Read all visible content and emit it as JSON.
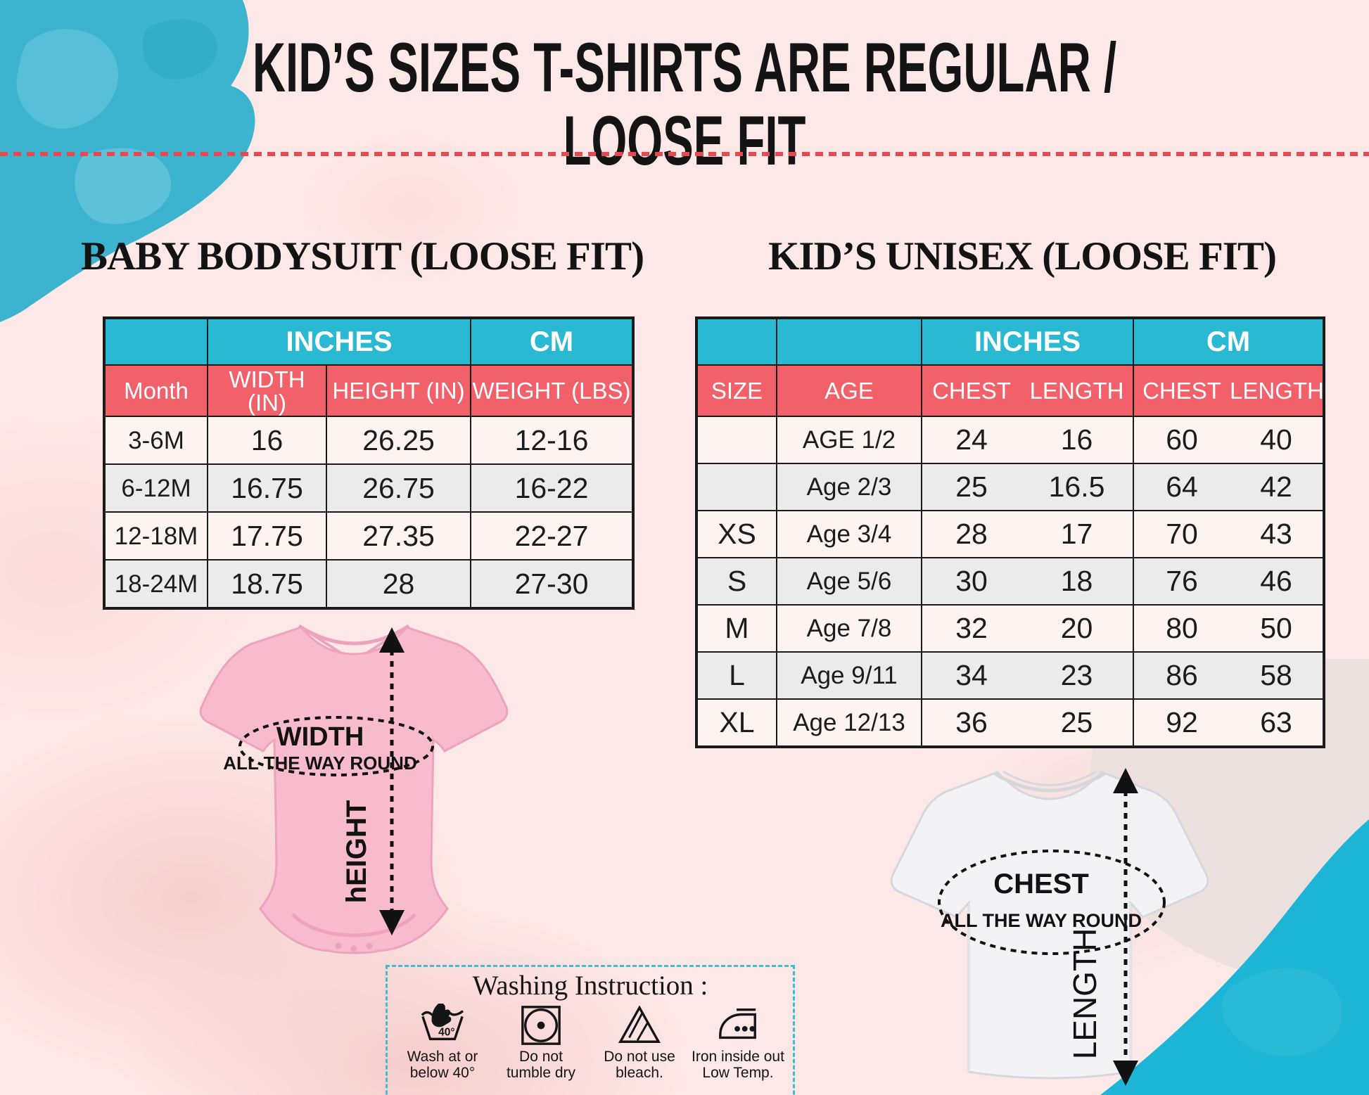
{
  "page": {
    "title": "KID’S SIZES T-SHIRTS ARE REGULAR / LOOSE FIT"
  },
  "colors": {
    "table_teal": "#29b9d2",
    "table_red": "#f2606a",
    "background_pink": "#fce9e7",
    "blob_teal": "#1cb5d5",
    "dotted_line_red": "#e34b52"
  },
  "baby_table": {
    "title": "BABY BODYSUIT (LOOSE FIT)",
    "group_headers": [
      "INCHES",
      "CM"
    ],
    "columns": [
      "Month",
      "WIDTH (IN)",
      "HEIGHT (IN)",
      "WEIGHT (LBS)"
    ],
    "rows": [
      [
        "3-6M",
        "16",
        "26.25",
        "12-16"
      ],
      [
        "6-12M",
        "16.75",
        "26.75",
        "16-22"
      ],
      [
        "12-18M",
        "17.75",
        "27.35",
        "22-27"
      ],
      [
        "18-24M",
        "18.75",
        "28",
        "27-30"
      ]
    ]
  },
  "kids_table": {
    "title": "KID’S UNISEX (LOOSE FIT)",
    "group_headers": [
      "INCHES",
      "CM"
    ],
    "columns": [
      "SIZE",
      "AGE",
      "CHEST",
      "LENGTH",
      "CHEST",
      "LENGTH"
    ],
    "rows": [
      [
        "",
        "AGE 1/2",
        "24",
        "16",
        "60",
        "40"
      ],
      [
        "",
        "Age 2/3",
        "25",
        "16.5",
        "64",
        "42"
      ],
      [
        "XS",
        "Age 3/4",
        "28",
        "17",
        "70",
        "43"
      ],
      [
        "S",
        "Age 5/6",
        "30",
        "18",
        "76",
        "46"
      ],
      [
        "M",
        "Age 7/8",
        "32",
        "20",
        "80",
        "50"
      ],
      [
        "L",
        "Age 9/11",
        "34",
        "23",
        "86",
        "58"
      ],
      [
        "XL",
        "Age 12/13",
        "36",
        "25",
        "92",
        "63"
      ]
    ]
  },
  "bodysuit_diagram": {
    "ellipse_label_line1": "WIDTH",
    "ellipse_label_line2": "ALL THE WAY ROUND",
    "arrow_label": "hEIGHT"
  },
  "tshirt_diagram": {
    "ellipse_label_line1": "CHEST",
    "ellipse_label_line2": "ALL THE WAY ROUND",
    "arrow_label": "LENGTH"
  },
  "washing": {
    "title": "Washing Instruction :",
    "items": [
      {
        "icon": "wash-at-40-icon",
        "label_line1": "Wash at or",
        "label_line2": "below 40°"
      },
      {
        "icon": "no-tumble-dry-icon",
        "label_line1": "Do  not",
        "label_line2": "tumble dry"
      },
      {
        "icon": "no-bleach-icon",
        "label_line1": "Do not use",
        "label_line2": "bleach."
      },
      {
        "icon": "iron-low-temp-icon",
        "label_line1": "Iron inside out",
        "label_line2": "Low Temp."
      }
    ]
  }
}
